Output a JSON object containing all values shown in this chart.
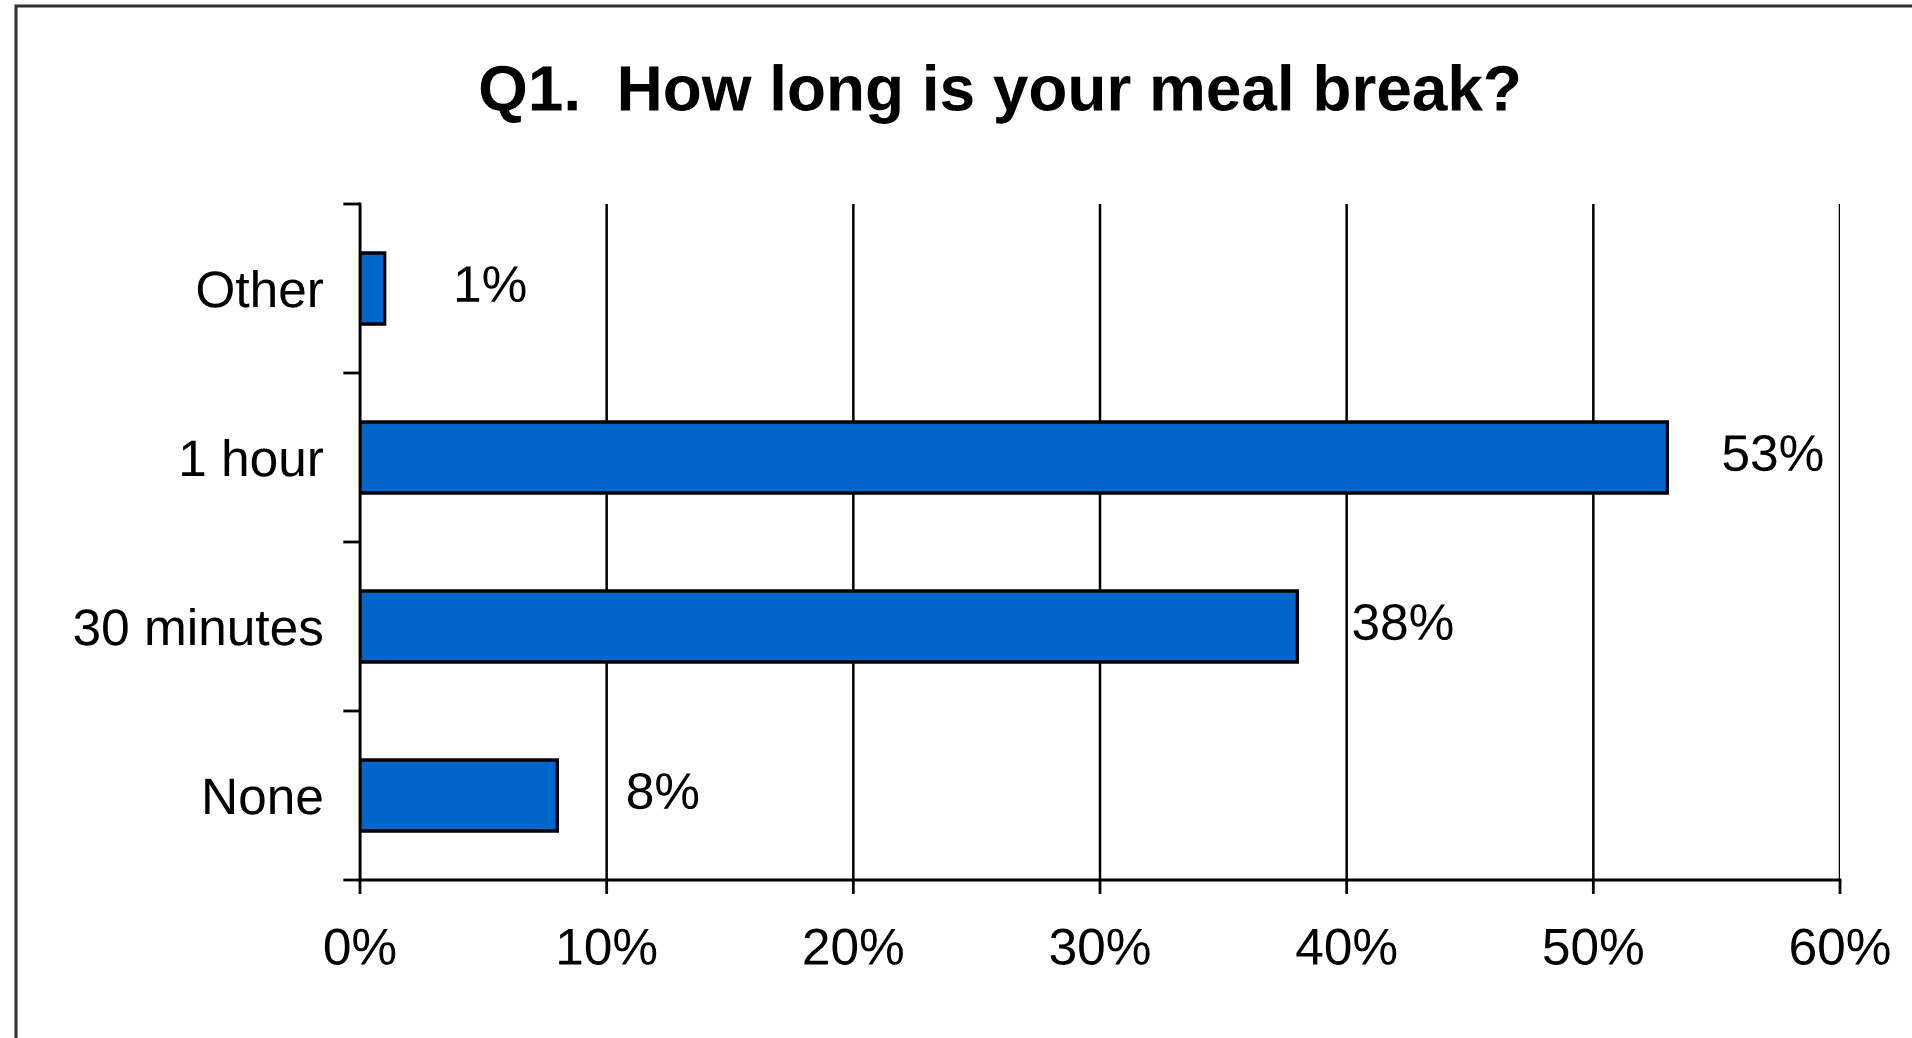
{
  "chart_data": {
    "type": "bar",
    "orientation": "horizontal",
    "title": "Q1.  How long is your meal break?",
    "categories": [
      "Other",
      "1 hour",
      "30 minutes",
      "None"
    ],
    "values": [
      1,
      53,
      38,
      8
    ],
    "color": "#0066cc",
    "value_labels": [
      "1%",
      "53%",
      "38%",
      "8%"
    ],
    "xlim": [
      0,
      60
    ],
    "xticks": [
      {
        "value": 0,
        "label": "0%"
      },
      {
        "value": 10,
        "label": "10%"
      },
      {
        "value": 20,
        "label": "20%"
      },
      {
        "value": 30,
        "label": "30%"
      },
      {
        "value": 40,
        "label": "40%"
      },
      {
        "value": 50,
        "label": "50%"
      },
      {
        "value": 60,
        "label": "60%"
      }
    ],
    "grid": "x"
  }
}
